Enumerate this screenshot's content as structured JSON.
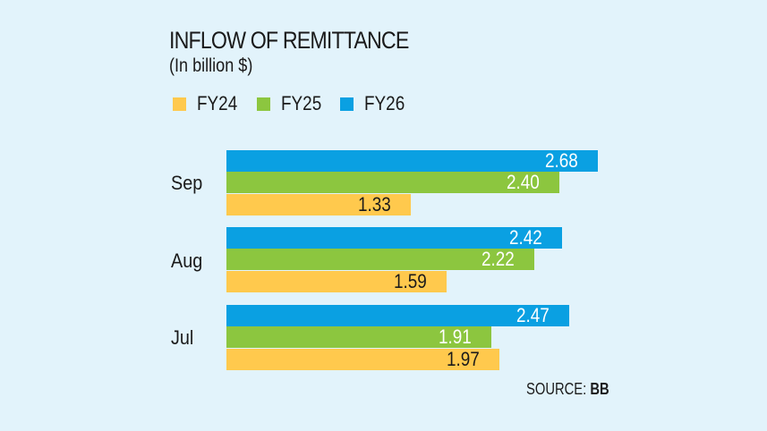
{
  "header": {
    "title": "INFLOW OF REMITTANCE",
    "subtitle": "(In billion $)"
  },
  "legend": [
    {
      "label": "FY24",
      "color": "#ffc94d"
    },
    {
      "label": "FY25",
      "color": "#8cc63f"
    },
    {
      "label": "FY26",
      "color": "#0aa0e2"
    }
  ],
  "groups": [
    {
      "label": "Sep",
      "bars": [
        {
          "series": "FY26",
          "value": "2.68"
        },
        {
          "series": "FY25",
          "value": "2.40"
        },
        {
          "series": "FY24",
          "value": "1.33"
        }
      ]
    },
    {
      "label": "Aug",
      "bars": [
        {
          "series": "FY26",
          "value": "2.42"
        },
        {
          "series": "FY25",
          "value": "2.22"
        },
        {
          "series": "FY24",
          "value": "1.59"
        }
      ]
    },
    {
      "label": "Jul",
      "bars": [
        {
          "series": "FY26",
          "value": "2.47"
        },
        {
          "series": "FY25",
          "value": "1.91"
        },
        {
          "series": "FY24",
          "value": "1.97"
        }
      ]
    }
  ],
  "footer": {
    "source_label": "SOURCE:",
    "source_value": "BB"
  },
  "chart_data": {
    "type": "bar",
    "orientation": "horizontal",
    "title": "INFLOW OF REMITTANCE",
    "subtitle": "(In billion $)",
    "categories": [
      "Sep",
      "Aug",
      "Jul"
    ],
    "series": [
      {
        "name": "FY24",
        "color": "#ffc94d",
        "values": [
          1.33,
          1.59,
          1.97
        ]
      },
      {
        "name": "FY25",
        "color": "#8cc63f",
        "values": [
          2.4,
          2.22,
          1.91
        ]
      },
      {
        "name": "FY26",
        "color": "#0aa0e2",
        "values": [
          2.68,
          2.42,
          2.47
        ]
      }
    ],
    "xlabel": "",
    "ylabel": "",
    "legend_position": "top",
    "grid": false,
    "data_labels": true,
    "source": "SOURCE: BB"
  }
}
